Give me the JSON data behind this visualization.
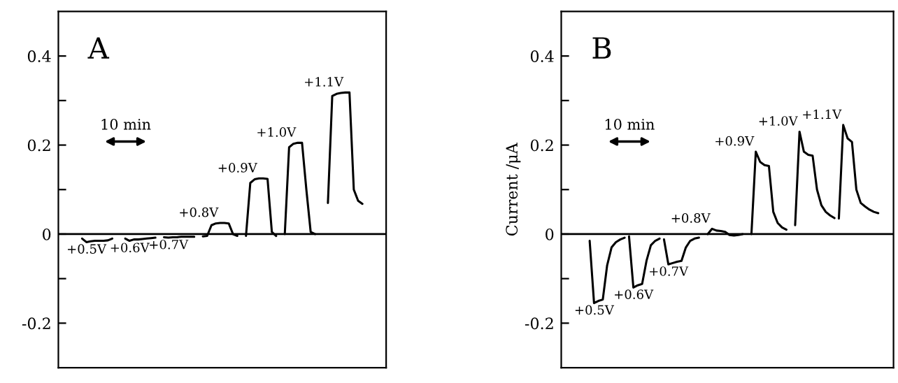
{
  "chart_data": [
    {
      "type": "line",
      "title": "A",
      "annotations": [
        "10 min"
      ],
      "tick_labels": "y",
      "ylim": [
        -0.3,
        0.5
      ],
      "yticks": [
        -0.2,
        {
          "value": -0.1,
          "label": null
        },
        0,
        {
          "value": 0.1,
          "label": null
        },
        0.2,
        {
          "value": 0.3,
          "label": null
        },
        0.4
      ],
      "ref_lines": [
        {
          "axis": "y",
          "value": 0
        }
      ],
      "categories": [
        null,
        null,
        null,
        null,
        null,
        null,
        null,
        null,
        null,
        null,
        null,
        null,
        null,
        null,
        null,
        null,
        null,
        null,
        null,
        null,
        null,
        null,
        null,
        null,
        null,
        null,
        null,
        null,
        null,
        null,
        null,
        null,
        null,
        null,
        null,
        null,
        null,
        null,
        null,
        null,
        null,
        null,
        null,
        null,
        null,
        null,
        null,
        null,
        null,
        null,
        null,
        null,
        null,
        null,
        null,
        null,
        null,
        null,
        null,
        null,
        null,
        null,
        null,
        null,
        null,
        null,
        null,
        null,
        null,
        null,
        null,
        null,
        null,
        null,
        null,
        null
      ],
      "series": [
        {
          "name": "+0.5V",
          "color": "#000000",
          "values": [
            null,
            null,
            null,
            null,
            null,
            -0.01,
            -0.018,
            -0.016,
            -0.015,
            -0.015,
            -0.015,
            -0.014,
            -0.01,
            null,
            null,
            null,
            null,
            null,
            null,
            null,
            null,
            null,
            null,
            null,
            null,
            null,
            null,
            null,
            null,
            null,
            null,
            null,
            null,
            null,
            null,
            null,
            null,
            null,
            null,
            null,
            null,
            null,
            null,
            null,
            null,
            null,
            null,
            null,
            null,
            null,
            null,
            null,
            null,
            null,
            null,
            null,
            null,
            null,
            null,
            null,
            null,
            null,
            null,
            null,
            null,
            null,
            null,
            null,
            null,
            null,
            null,
            null,
            null,
            null,
            null,
            null
          ]
        },
        {
          "name": "+0.6V",
          "color": "#000000",
          "values": [
            null,
            null,
            null,
            null,
            null,
            null,
            null,
            null,
            null,
            null,
            null,
            null,
            null,
            null,
            null,
            -0.01,
            -0.015,
            -0.012,
            -0.012,
            -0.011,
            -0.01,
            -0.009,
            -0.008,
            null,
            null,
            null,
            null,
            null,
            null,
            null,
            null,
            null,
            null,
            null,
            null,
            null,
            null,
            null,
            null,
            null,
            null,
            null,
            null,
            null,
            null,
            null,
            null,
            null,
            null,
            null,
            null,
            null,
            null,
            null,
            null,
            null,
            null,
            null,
            null,
            null,
            null,
            null,
            null,
            null,
            null,
            null,
            null,
            null,
            null,
            null,
            null,
            null,
            null,
            null,
            null,
            null
          ]
        },
        {
          "name": "+0.7V",
          "color": "#000000",
          "values": [
            null,
            null,
            null,
            null,
            null,
            null,
            null,
            null,
            null,
            null,
            null,
            null,
            null,
            null,
            null,
            null,
            null,
            null,
            null,
            null,
            null,
            null,
            null,
            null,
            -0.007,
            -0.008,
            -0.007,
            -0.007,
            -0.006,
            -0.006,
            -0.006,
            -0.006,
            null,
            null,
            null,
            null,
            null,
            null,
            null,
            null,
            null,
            null,
            null,
            null,
            null,
            null,
            null,
            null,
            null,
            null,
            null,
            null,
            null,
            null,
            null,
            null,
            null,
            null,
            null,
            null,
            null,
            null,
            null,
            null,
            null,
            null,
            null,
            null,
            null,
            null,
            null,
            null,
            null,
            null,
            null,
            null
          ]
        },
        {
          "name": "+0.8V",
          "color": "#000000",
          "values": [
            null,
            null,
            null,
            null,
            null,
            null,
            null,
            null,
            null,
            null,
            null,
            null,
            null,
            null,
            null,
            null,
            null,
            null,
            null,
            null,
            null,
            null,
            null,
            null,
            null,
            null,
            null,
            null,
            null,
            null,
            null,
            null,
            null,
            -0.005,
            -0.004,
            0.02,
            0.024,
            0.025,
            0.025,
            0.024,
            0.0,
            -0.004,
            null,
            null,
            null,
            null,
            null,
            null,
            null,
            null,
            null,
            null,
            null,
            null,
            null,
            null,
            null,
            null,
            null,
            null,
            null,
            null,
            null,
            null,
            null,
            null,
            null,
            null,
            null,
            null,
            null,
            null,
            null,
            null,
            null,
            null
          ]
        },
        {
          "name": "+0.9V",
          "color": "#000000",
          "values": [
            null,
            null,
            null,
            null,
            null,
            null,
            null,
            null,
            null,
            null,
            null,
            null,
            null,
            null,
            null,
            null,
            null,
            null,
            null,
            null,
            null,
            null,
            null,
            null,
            null,
            null,
            null,
            null,
            null,
            null,
            null,
            null,
            null,
            null,
            null,
            null,
            null,
            null,
            null,
            null,
            null,
            null,
            null,
            -0.004,
            0.115,
            0.123,
            0.125,
            0.125,
            0.124,
            0.005,
            -0.004,
            null,
            null,
            null,
            null,
            null,
            null,
            null,
            null,
            null,
            null,
            null,
            null,
            null,
            null,
            null,
            null,
            null,
            null,
            null,
            null,
            null,
            null,
            null,
            null,
            null
          ]
        },
        {
          "name": "+1.0V",
          "color": "#000000",
          "values": [
            null,
            null,
            null,
            null,
            null,
            null,
            null,
            null,
            null,
            null,
            null,
            null,
            null,
            null,
            null,
            null,
            null,
            null,
            null,
            null,
            null,
            null,
            null,
            null,
            null,
            null,
            null,
            null,
            null,
            null,
            null,
            null,
            null,
            null,
            null,
            null,
            null,
            null,
            null,
            null,
            null,
            null,
            null,
            null,
            null,
            null,
            null,
            null,
            null,
            null,
            null,
            null,
            0.0,
            0.195,
            0.203,
            0.205,
            0.205,
            0.1,
            0.005,
            0.0,
            null,
            null,
            null,
            null,
            null,
            null,
            null,
            null,
            null,
            null,
            null,
            null,
            null,
            null,
            null,
            null
          ]
        },
        {
          "name": "+1.1V",
          "color": "#000000",
          "values": [
            null,
            null,
            null,
            null,
            null,
            null,
            null,
            null,
            null,
            null,
            null,
            null,
            null,
            null,
            null,
            null,
            null,
            null,
            null,
            null,
            null,
            null,
            null,
            null,
            null,
            null,
            null,
            null,
            null,
            null,
            null,
            null,
            null,
            null,
            null,
            null,
            null,
            null,
            null,
            null,
            null,
            null,
            null,
            null,
            null,
            null,
            null,
            null,
            null,
            null,
            null,
            null,
            null,
            null,
            null,
            null,
            null,
            null,
            null,
            null,
            null,
            null,
            0.07,
            0.31,
            0.315,
            0.317,
            0.318,
            0.318,
            0.1,
            0.075,
            0.068,
            null,
            null,
            null,
            null,
            null
          ]
        }
      ]
    },
    {
      "type": "line",
      "title": "B",
      "ylabel": "Current /μA",
      "annotations": [
        "10 min"
      ],
      "tick_labels": "y",
      "ylim": [
        -0.3,
        0.5
      ],
      "yticks": [
        -0.2,
        {
          "value": -0.1,
          "label": null
        },
        0,
        {
          "value": 0.1,
          "label": null
        },
        0.2,
        {
          "value": 0.3,
          "label": null
        },
        0.4
      ],
      "ref_lines": [
        {
          "axis": "y",
          "value": 0
        }
      ],
      "categories": [
        null,
        null,
        null,
        null,
        null,
        null,
        null,
        null,
        null,
        null,
        null,
        null,
        null,
        null,
        null,
        null,
        null,
        null,
        null,
        null,
        null,
        null,
        null,
        null,
        null,
        null,
        null,
        null,
        null,
        null,
        null,
        null,
        null,
        null,
        null,
        null,
        null,
        null,
        null,
        null,
        null,
        null,
        null,
        null,
        null,
        null,
        null,
        null,
        null,
        null,
        null,
        null,
        null,
        null,
        null,
        null,
        null,
        null,
        null,
        null,
        null,
        null,
        null,
        null,
        null,
        null,
        null,
        null,
        null,
        null,
        null,
        null,
        null,
        null,
        null,
        null
      ],
      "series": [
        {
          "name": "+0.5V",
          "color": "#000000",
          "values": [
            null,
            null,
            null,
            null,
            null,
            null,
            -0.015,
            -0.155,
            -0.15,
            -0.147,
            -0.07,
            -0.03,
            -0.018,
            -0.012,
            -0.008,
            null,
            null,
            null,
            null,
            null,
            null,
            null,
            null,
            null,
            null,
            null,
            null,
            null,
            null,
            null,
            null,
            null,
            null,
            null,
            null,
            null,
            null,
            null,
            null,
            null,
            null,
            null,
            null,
            null,
            null,
            null,
            null,
            null,
            null,
            null,
            null,
            null,
            null,
            null,
            null,
            null,
            null,
            null,
            null,
            null,
            null,
            null,
            null,
            null,
            null,
            null,
            null,
            null,
            null,
            null,
            null,
            null,
            null,
            null,
            null,
            null
          ]
        },
        {
          "name": "+0.6V",
          "color": "#000000",
          "values": [
            null,
            null,
            null,
            null,
            null,
            null,
            null,
            null,
            null,
            null,
            null,
            null,
            null,
            null,
            null,
            -0.005,
            -0.12,
            -0.115,
            -0.112,
            -0.06,
            -0.025,
            -0.015,
            -0.01,
            null,
            null,
            null,
            null,
            null,
            null,
            null,
            null,
            null,
            null,
            null,
            null,
            null,
            null,
            null,
            null,
            null,
            null,
            null,
            null,
            null,
            null,
            null,
            null,
            null,
            null,
            null,
            null,
            null,
            null,
            null,
            null,
            null,
            null,
            null,
            null,
            null,
            null,
            null,
            null,
            null,
            null,
            null,
            null,
            null,
            null,
            null,
            null,
            null,
            null,
            null,
            null,
            null
          ]
        },
        {
          "name": "+0.7V",
          "color": "#000000",
          "values": [
            null,
            null,
            null,
            null,
            null,
            null,
            null,
            null,
            null,
            null,
            null,
            null,
            null,
            null,
            null,
            null,
            null,
            null,
            null,
            null,
            null,
            null,
            null,
            -0.012,
            -0.068,
            -0.065,
            -0.062,
            -0.06,
            -0.03,
            -0.015,
            -0.01,
            -0.008,
            null,
            null,
            null,
            null,
            null,
            null,
            null,
            null,
            null,
            null,
            null,
            null,
            null,
            null,
            null,
            null,
            null,
            null,
            null,
            null,
            null,
            null,
            null,
            null,
            null,
            null,
            null,
            null,
            null,
            null,
            null,
            null,
            null,
            null,
            null,
            null,
            null,
            null,
            null,
            null,
            null,
            null,
            null,
            null
          ]
        },
        {
          "name": "+0.8V",
          "color": "#000000",
          "values": [
            null,
            null,
            null,
            null,
            null,
            null,
            null,
            null,
            null,
            null,
            null,
            null,
            null,
            null,
            null,
            null,
            null,
            null,
            null,
            null,
            null,
            null,
            null,
            null,
            null,
            null,
            null,
            null,
            null,
            null,
            null,
            null,
            null,
            0.0,
            0.012,
            0.008,
            0.007,
            0.005,
            -0.002,
            -0.003,
            -0.002,
            0.0,
            null,
            null,
            null,
            null,
            null,
            null,
            null,
            null,
            null,
            null,
            null,
            null,
            null,
            null,
            null,
            null,
            null,
            null,
            null,
            null,
            null,
            null,
            null,
            null,
            null,
            null,
            null,
            null,
            null,
            null,
            null,
            null,
            null,
            null
          ]
        },
        {
          "name": "+0.9V",
          "color": "#000000",
          "values": [
            null,
            null,
            null,
            null,
            null,
            null,
            null,
            null,
            null,
            null,
            null,
            null,
            null,
            null,
            null,
            null,
            null,
            null,
            null,
            null,
            null,
            null,
            null,
            null,
            null,
            null,
            null,
            null,
            null,
            null,
            null,
            null,
            null,
            null,
            null,
            null,
            null,
            null,
            null,
            null,
            null,
            null,
            null,
            0.0,
            0.185,
            0.162,
            0.155,
            0.153,
            0.05,
            0.025,
            0.015,
            0.01,
            null,
            null,
            null,
            null,
            null,
            null,
            null,
            null,
            null,
            null,
            null,
            null,
            null,
            null,
            null,
            null,
            null,
            null,
            null,
            null,
            null,
            null,
            null,
            null
          ]
        },
        {
          "name": "+1.0V",
          "color": "#000000",
          "values": [
            null,
            null,
            null,
            null,
            null,
            null,
            null,
            null,
            null,
            null,
            null,
            null,
            null,
            null,
            null,
            null,
            null,
            null,
            null,
            null,
            null,
            null,
            null,
            null,
            null,
            null,
            null,
            null,
            null,
            null,
            null,
            null,
            null,
            null,
            null,
            null,
            null,
            null,
            null,
            null,
            null,
            null,
            null,
            null,
            null,
            null,
            null,
            null,
            null,
            null,
            null,
            null,
            null,
            0.02,
            0.23,
            0.185,
            0.178,
            0.176,
            0.1,
            0.065,
            0.05,
            0.042,
            0.036,
            null,
            null,
            null,
            null,
            null,
            null,
            null,
            null,
            null,
            null,
            null,
            null,
            null
          ]
        },
        {
          "name": "+1.1V",
          "color": "#000000",
          "values": [
            null,
            null,
            null,
            null,
            null,
            null,
            null,
            null,
            null,
            null,
            null,
            null,
            null,
            null,
            null,
            null,
            null,
            null,
            null,
            null,
            null,
            null,
            null,
            null,
            null,
            null,
            null,
            null,
            null,
            null,
            null,
            null,
            null,
            null,
            null,
            null,
            null,
            null,
            null,
            null,
            null,
            null,
            null,
            null,
            null,
            null,
            null,
            null,
            null,
            null,
            null,
            null,
            null,
            null,
            null,
            null,
            null,
            null,
            null,
            null,
            null,
            null,
            null,
            0.035,
            0.245,
            0.215,
            0.207,
            0.1,
            0.07,
            0.062,
            0.055,
            0.05,
            0.047,
            null,
            null,
            null
          ]
        }
      ]
    }
  ]
}
